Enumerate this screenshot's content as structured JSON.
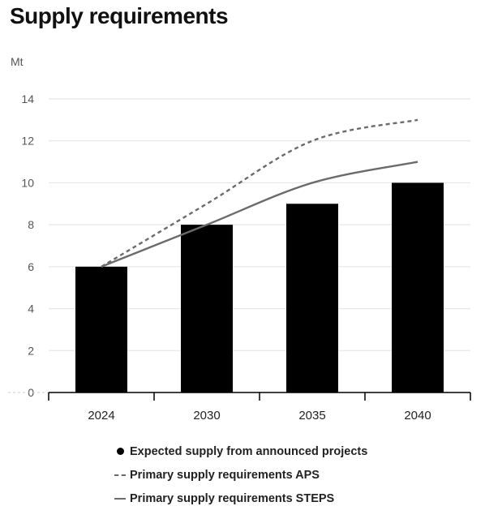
{
  "chart_data": {
    "type": "bar",
    "title": "Supply requirements",
    "ylabel": "Mt",
    "xlabel": "",
    "ylim": [
      0,
      14
    ],
    "yticks": [
      0,
      2,
      4,
      6,
      8,
      10,
      12,
      14
    ],
    "categories": [
      "2024",
      "2030",
      "2035",
      "2040"
    ],
    "grid": true,
    "legend_position": "bottom",
    "series": [
      {
        "name": "Expected supply from announced projects",
        "type": "bar",
        "color": "#000000",
        "values": [
          6,
          8,
          9,
          10
        ]
      },
      {
        "name": "Primary supply requirements APS",
        "type": "line",
        "style": "dashed",
        "color": "#6b6b6b",
        "values": [
          6,
          9,
          12,
          13
        ]
      },
      {
        "name": "Primary supply requirements STEPS",
        "type": "line",
        "style": "solid",
        "color": "#6b6b6b",
        "values": [
          6,
          8,
          10,
          11
        ]
      }
    ]
  }
}
